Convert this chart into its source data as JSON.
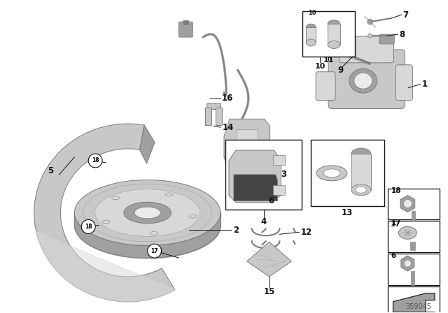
{
  "background_color": "#ffffff",
  "line_color": "#000000",
  "diagram_id": "359045",
  "c_dark": "#7a7a7a",
  "c_mid": "#a0a0a0",
  "c_light": "#c8c8c8",
  "c_lighter": "#d8d8d8",
  "c_lightest": "#ebebeb",
  "c_white": "#ffffff",
  "c_black": "#111111",
  "c_shadow": "#909090",
  "label_fs": 8,
  "small_fs": 7
}
